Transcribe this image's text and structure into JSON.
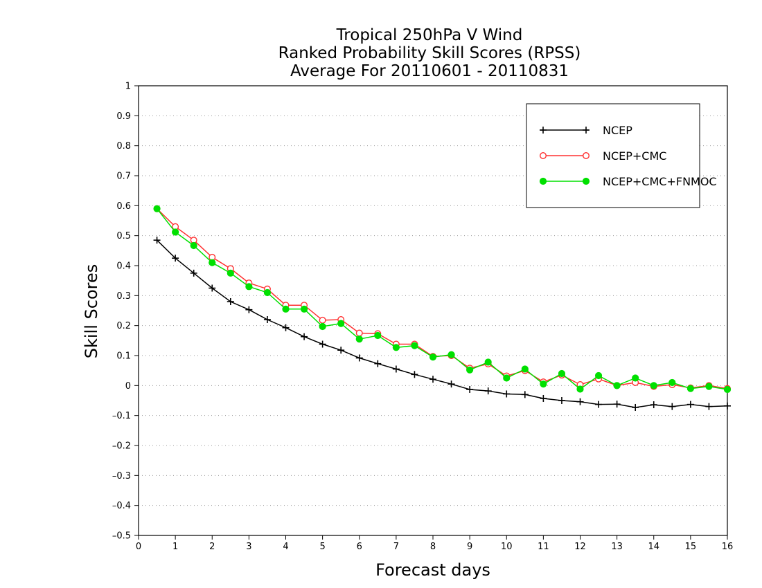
{
  "chart_data": {
    "type": "line",
    "title_lines": [
      "Tropical 250hPa V Wind",
      "Ranked Probability Skill Scores (RPSS)",
      "Average For 20110601 - 20110831"
    ],
    "xlabel": "Forecast days",
    "ylabel": "Skill Scores",
    "xlim": [
      0,
      16
    ],
    "ylim": [
      -0.5,
      1
    ],
    "x_ticks": [
      "0",
      "1",
      "2",
      "3",
      "4",
      "5",
      "6",
      "7",
      "8",
      "9",
      "10",
      "11",
      "12",
      "13",
      "14",
      "15",
      "16"
    ],
    "y_ticks": [
      "1",
      "0.9",
      "0.8",
      "0.7",
      "0.6",
      "0.5",
      "0.4",
      "0.3",
      "0.2",
      "0.1",
      "0",
      "–0.1",
      "–0.2",
      "–0.3",
      "–0.4",
      "–0.5"
    ],
    "grid": true,
    "legend_position": "top-right",
    "x": [
      0.5,
      1,
      1.5,
      2,
      2.5,
      3,
      3.5,
      4,
      4.5,
      5,
      5.5,
      6,
      6.5,
      7,
      7.5,
      8,
      8.5,
      9,
      9.5,
      10,
      10.5,
      11,
      11.5,
      12,
      12.5,
      13,
      13.5,
      14,
      14.5,
      15,
      15.5,
      16
    ],
    "series": [
      {
        "name": "NCEP",
        "color": "#000000",
        "marker": "plus",
        "values": [
          0.485,
          0.425,
          0.375,
          0.325,
          0.28,
          0.253,
          0.22,
          0.193,
          0.163,
          0.138,
          0.118,
          0.092,
          0.073,
          0.055,
          0.037,
          0.021,
          0.005,
          -0.013,
          -0.018,
          -0.028,
          -0.03,
          -0.043,
          -0.05,
          -0.054,
          -0.063,
          -0.062,
          -0.073,
          -0.064,
          -0.07,
          -0.063,
          -0.07,
          -0.068
        ]
      },
      {
        "name": "NCEP+CMC",
        "color": "#ff3030",
        "marker": "open-circle",
        "values": [
          0.59,
          0.53,
          0.485,
          0.428,
          0.39,
          0.342,
          0.322,
          0.268,
          0.268,
          0.218,
          0.22,
          0.175,
          0.173,
          0.138,
          0.138,
          0.097,
          0.1,
          0.058,
          0.072,
          0.032,
          0.05,
          0.012,
          0.035,
          0.003,
          0.022,
          0.0,
          0.01,
          -0.003,
          0.003,
          -0.008,
          0.0,
          -0.01
        ]
      },
      {
        "name": "NCEP+CMC+FNMOC",
        "color": "#00e000",
        "marker": "filled-circle",
        "values": [
          0.59,
          0.512,
          0.467,
          0.41,
          0.375,
          0.33,
          0.31,
          0.255,
          0.255,
          0.197,
          0.207,
          0.155,
          0.167,
          0.127,
          0.133,
          0.095,
          0.103,
          0.052,
          0.078,
          0.025,
          0.055,
          0.005,
          0.04,
          -0.012,
          0.033,
          0.0,
          0.025,
          0.0,
          0.01,
          -0.01,
          -0.003,
          -0.013
        ]
      }
    ]
  }
}
